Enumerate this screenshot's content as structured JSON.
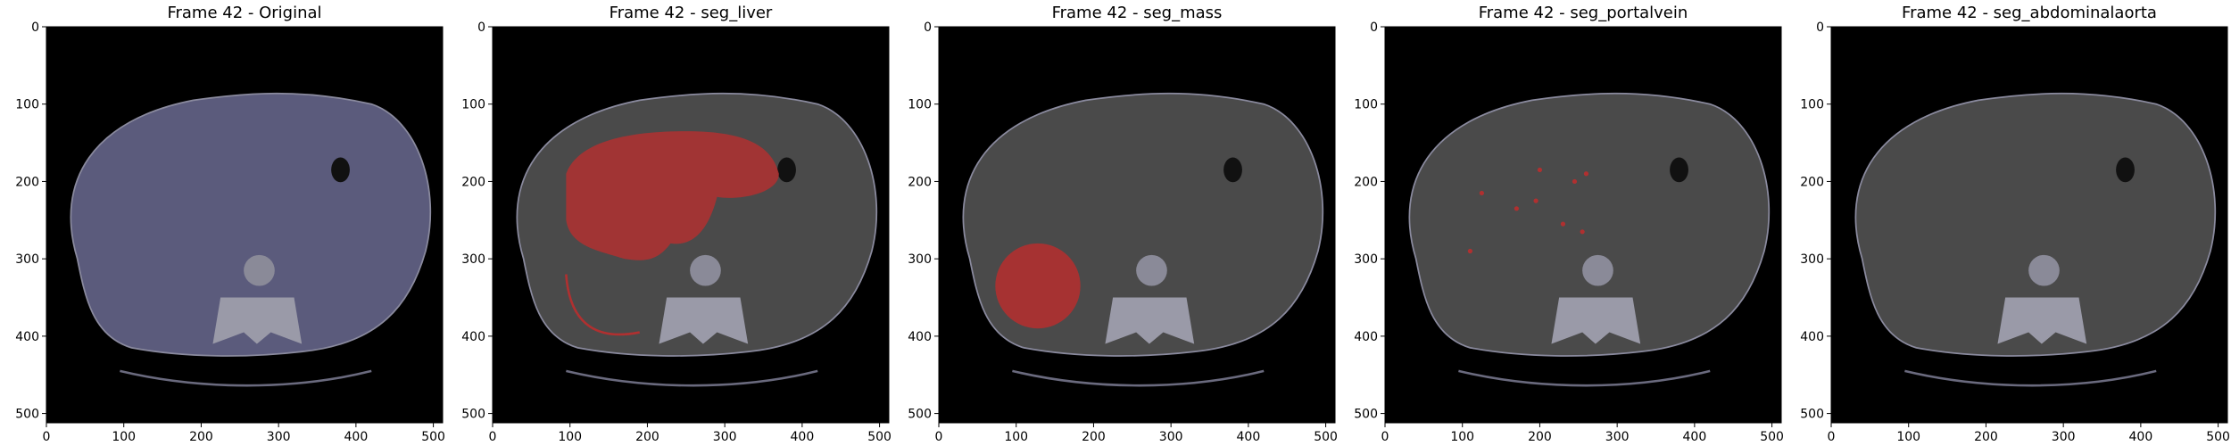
{
  "figure": {
    "panels": [
      {
        "title": "Frame 42 - Original",
        "overlay": "none",
        "tint": "#5b5b7c"
      },
      {
        "title": "Frame 42 - seg_liver",
        "overlay": "liver",
        "tint": "#4a4a4a"
      },
      {
        "title": "Frame 42 - seg_mass",
        "overlay": "mass",
        "tint": "#4a4a4a"
      },
      {
        "title": "Frame 42 - seg_portalvein",
        "overlay": "portalvein",
        "tint": "#4a4a4a"
      },
      {
        "title": "Frame 42 - seg_abdominalaorta",
        "overlay": "none",
        "tint": "#4a4a4a"
      }
    ],
    "axis": {
      "x_ticks": [
        "0",
        "100",
        "200",
        "300",
        "400",
        "500"
      ],
      "y_ticks": [
        "0",
        "100",
        "200",
        "300",
        "400",
        "500"
      ],
      "x_values": [
        0,
        100,
        200,
        300,
        400,
        500
      ],
      "y_values": [
        0,
        100,
        200,
        300,
        400,
        500
      ],
      "range": [
        0,
        512
      ]
    },
    "colors": {
      "background": "#000000",
      "segmentation": "#b03030"
    }
  }
}
